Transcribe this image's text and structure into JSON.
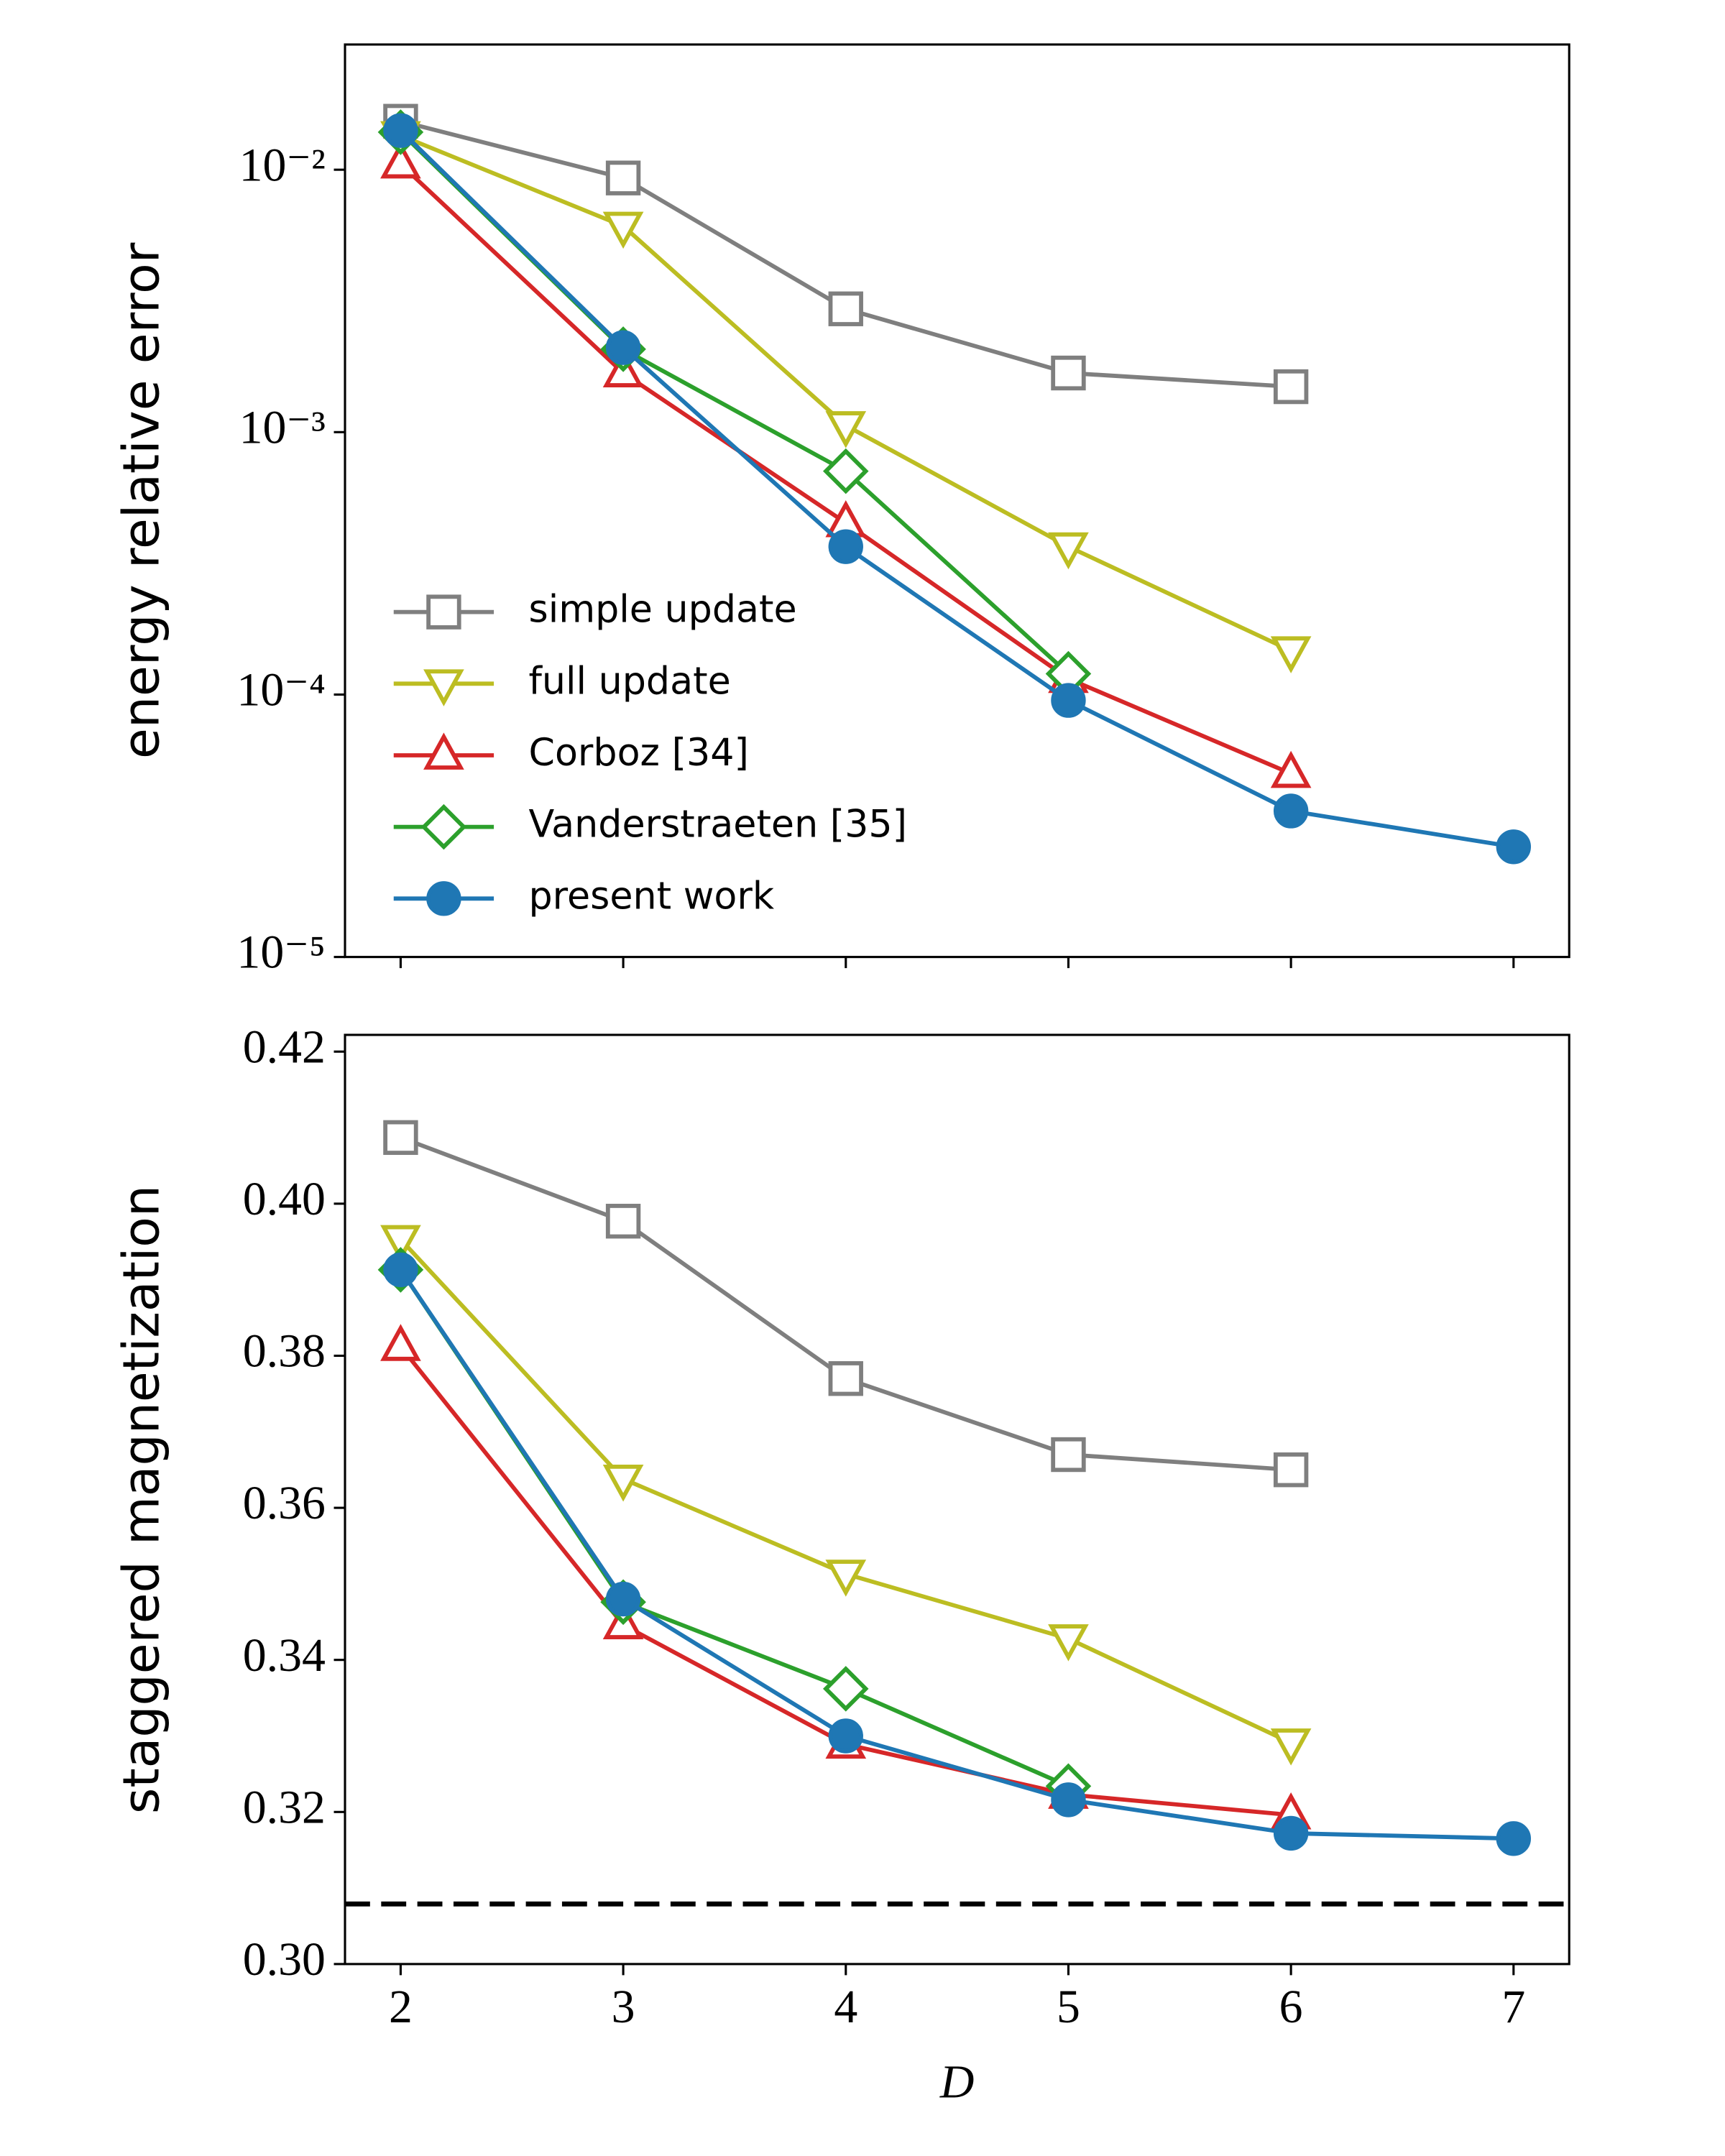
{
  "chart_data": [
    {
      "type": "line",
      "ylabel": "energy relative error",
      "yscale": "log",
      "x": [
        2,
        3,
        4,
        5,
        6,
        7
      ],
      "xlim": [
        1.75,
        7.25
      ],
      "xticks": [
        2,
        3,
        4,
        5,
        6,
        7
      ],
      "ylim": [
        1e-05,
        0.03
      ],
      "yticks": [
        {
          "value": 0.01,
          "label": "10⁻²"
        },
        {
          "value": 0.001,
          "label": "10⁻³"
        },
        {
          "value": 0.0001,
          "label": "10⁻⁴"
        },
        {
          "value": 1e-05,
          "label": "10⁻⁵"
        }
      ],
      "legend": "lower left",
      "series": [
        {
          "name": "simple update",
          "color": "#7f7f7f",
          "marker": "square",
          "values": [
            0.0153,
            0.0093,
            0.00295,
            0.00168,
            0.00149,
            null
          ]
        },
        {
          "name": "full update",
          "color": "#bcbd22",
          "marker": "triangle-down",
          "values": [
            0.0135,
            0.0061,
            0.00106,
            0.000366,
            0.000147,
            null
          ]
        },
        {
          "name": "Corboz [34]",
          "color": "#d62728",
          "marker": "triangle-up",
          "values": [
            0.0105,
            0.00168,
            0.000451,
            0.000115,
            5e-05,
            null
          ]
        },
        {
          "name": "Vanderstraeten [35]",
          "color": "#2ca02c",
          "marker": "diamond",
          "values": [
            0.0139,
            0.00207,
            0.00071,
            0.00012,
            null,
            null
          ]
        },
        {
          "name": "present work",
          "color": "#1f77b4",
          "marker": "circle",
          "values": [
            0.0141,
            0.0021,
            0.000366,
            9.5e-05,
            3.6e-05,
            2.63e-05
          ]
        }
      ]
    },
    {
      "type": "line",
      "ylabel": "staggered magnetization",
      "xlabel": "D",
      "yscale": "linear",
      "x": [
        2,
        3,
        4,
        5,
        6,
        7
      ],
      "xlim": [
        1.75,
        7.25
      ],
      "xticks": [
        2,
        3,
        4,
        5,
        6,
        7
      ],
      "ylim": [
        0.3,
        0.4222
      ],
      "yticks": [
        {
          "value": 0.3,
          "label": "0.30"
        },
        0.32,
        0.34,
        0.36,
        0.38,
        {
          "value": 0.4,
          "label": "0.40"
        },
        0.42
      ],
      "hline": 0.3079,
      "series": [
        {
          "name": "simple update",
          "color": "#7f7f7f",
          "marker": "square",
          "values": [
            0.4087,
            0.3977,
            0.377,
            0.367,
            0.365,
            null
          ]
        },
        {
          "name": "full update",
          "color": "#bcbd22",
          "marker": "triangle-down",
          "values": [
            0.3953,
            0.3638,
            0.3513,
            0.3428,
            0.3291,
            null
          ]
        },
        {
          "name": "Corboz [34]",
          "color": "#d62728",
          "marker": "triangle-up",
          "values": [
            0.3812,
            0.3446,
            0.3289,
            0.3223,
            0.3196,
            null
          ]
        },
        {
          "name": "Vanderstraeten [35]",
          "color": "#2ca02c",
          "marker": "diamond",
          "values": [
            0.3913,
            0.3476,
            0.3362,
            0.3234,
            null,
            null
          ]
        },
        {
          "name": "present work",
          "color": "#1f77b4",
          "marker": "circle",
          "values": [
            0.3913,
            0.348,
            0.33,
            0.3216,
            0.3172,
            0.3165
          ]
        }
      ]
    }
  ]
}
